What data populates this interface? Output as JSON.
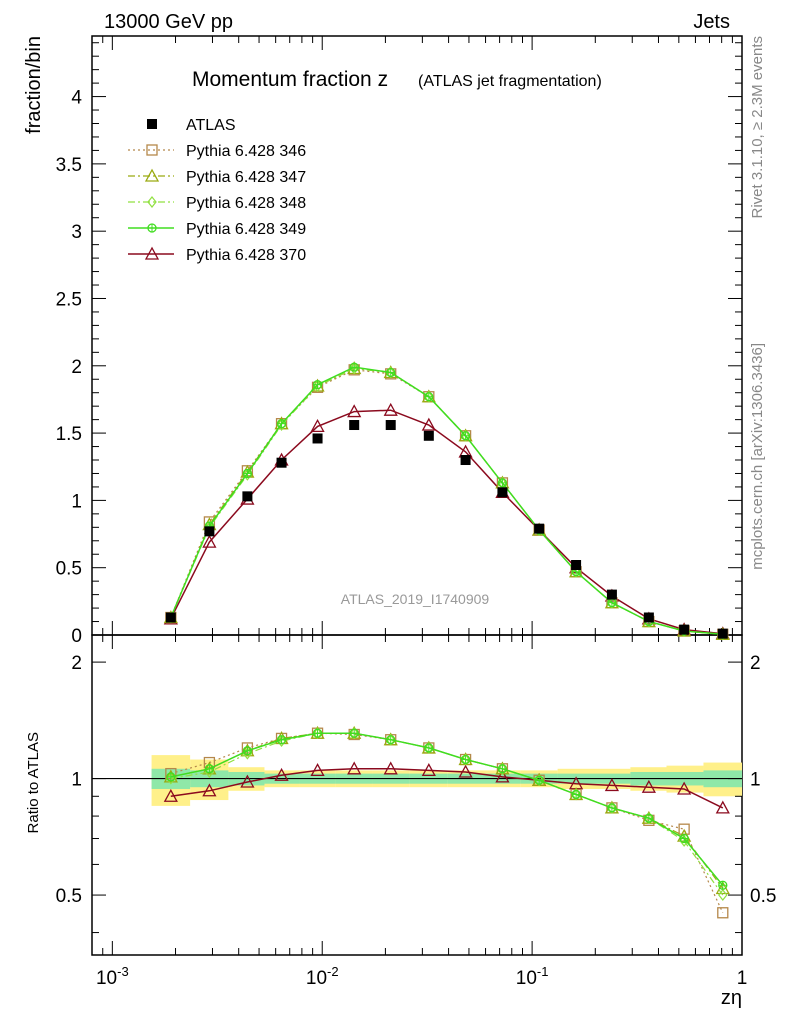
{
  "header": {
    "left": "13000 GeV pp",
    "right": "Jets"
  },
  "side": {
    "rivet": "Rivet 3.1.10, ≥ 2.3M events",
    "mcplots": "mcplots.cern.ch [arXiv:1306.3436]"
  },
  "chart_data": [
    {
      "type": "scatter",
      "title_main": "Momentum fraction z",
      "title_sub": "(ATLAS jet fragmentation)",
      "ylabel": "fraction/bin",
      "xlabel": "zη",
      "watermark": "ATLAS_2019_I1740909",
      "xscale": "log",
      "xlim": [
        0.0008,
        1.0
      ],
      "ylim": [
        0,
        4.45
      ],
      "yticks": [
        "0",
        "0.5",
        "1",
        "1.5",
        "2",
        "2.5",
        "3",
        "3.5",
        "4"
      ],
      "xticks": [
        "10^-3",
        "10^-2",
        "10^-1",
        "1"
      ],
      "legend_position": "top-left",
      "x": [
        0.0019,
        0.0029,
        0.0044,
        0.0064,
        0.0095,
        0.0142,
        0.0212,
        0.0322,
        0.0482,
        0.0722,
        0.108,
        0.162,
        0.24,
        0.36,
        0.53,
        0.81
      ],
      "series": [
        {
          "name": "ATLAS",
          "color": "#000000",
          "marker": "square-filled",
          "line": "none",
          "values": [
            0.13,
            0.77,
            1.03,
            1.28,
            1.46,
            1.56,
            1.56,
            1.48,
            1.3,
            1.06,
            0.79,
            0.52,
            0.3,
            0.13,
            0.04,
            0.01
          ]
        },
        {
          "name": "Pythia 6.428 346",
          "color": "#b5884a",
          "marker": "square-open",
          "line": "dotted",
          "values": [
            0.13,
            0.84,
            1.22,
            1.57,
            1.84,
            1.97,
            1.94,
            1.77,
            1.48,
            1.13,
            0.78,
            0.47,
            0.24,
            0.1,
            0.03,
            0.005
          ]
        },
        {
          "name": "Pythia 6.428 347",
          "color": "#9aaa10",
          "marker": "triangle-open",
          "line": "dashdot",
          "values": [
            0.13,
            0.82,
            1.21,
            1.57,
            1.85,
            1.98,
            1.95,
            1.77,
            1.48,
            1.13,
            0.78,
            0.47,
            0.24,
            0.1,
            0.03,
            0.005
          ]
        },
        {
          "name": "Pythia 6.428 348",
          "color": "#90e040",
          "marker": "diamond-open",
          "line": "dashdot",
          "values": [
            0.13,
            0.8,
            1.19,
            1.56,
            1.85,
            1.98,
            1.95,
            1.77,
            1.48,
            1.13,
            0.78,
            0.47,
            0.24,
            0.1,
            0.03,
            0.005
          ]
        },
        {
          "name": "Pythia 6.428 349",
          "color": "#40dd20",
          "marker": "circle-cross",
          "line": "solid",
          "values": [
            0.13,
            0.81,
            1.2,
            1.57,
            1.86,
            1.99,
            1.95,
            1.77,
            1.48,
            1.13,
            0.78,
            0.47,
            0.24,
            0.1,
            0.03,
            0.005
          ]
        },
        {
          "name": "Pythia 6.428 370",
          "color": "#8b0a1e",
          "marker": "triangle-open",
          "line": "solid",
          "values": [
            0.12,
            0.69,
            1.01,
            1.3,
            1.55,
            1.66,
            1.67,
            1.56,
            1.36,
            1.06,
            0.78,
            0.5,
            0.29,
            0.12,
            0.04,
            0.01
          ]
        }
      ]
    },
    {
      "type": "scatter",
      "ylabel": "Ratio to ATLAS",
      "xlabel": "zη",
      "xscale": "log",
      "xlim": [
        0.0008,
        1.0
      ],
      "ylim": [
        0.35,
        2.35
      ],
      "yticks": [
        "0.5",
        "1",
        "2"
      ],
      "reference_line": 1,
      "x": [
        0.0019,
        0.0029,
        0.0044,
        0.0064,
        0.0095,
        0.0142,
        0.0212,
        0.0322,
        0.0482,
        0.0722,
        0.108,
        0.162,
        0.24,
        0.36,
        0.53,
        0.81
      ],
      "bands": {
        "yellow": [
          0.15,
          0.12,
          0.07,
          0.05,
          0.05,
          0.05,
          0.05,
          0.05,
          0.05,
          0.05,
          0.05,
          0.06,
          0.06,
          0.07,
          0.08,
          0.1
        ],
        "green": [
          0.06,
          0.05,
          0.04,
          0.03,
          0.03,
          0.03,
          0.03,
          0.03,
          0.03,
          0.03,
          0.03,
          0.03,
          0.03,
          0.04,
          0.04,
          0.05
        ]
      },
      "series": [
        {
          "name": "Pythia 6.428 346",
          "color": "#b5884a",
          "marker": "square-open",
          "line": "dotted",
          "values": [
            1.03,
            1.1,
            1.2,
            1.27,
            1.31,
            1.3,
            1.26,
            1.2,
            1.12,
            1.06,
            0.99,
            0.91,
            0.84,
            0.78,
            0.74,
            0.45
          ]
        },
        {
          "name": "Pythia 6.428 347",
          "color": "#9aaa10",
          "marker": "triangle-open",
          "line": "dashdot",
          "values": [
            1.01,
            1.06,
            1.18,
            1.27,
            1.31,
            1.31,
            1.26,
            1.2,
            1.12,
            1.06,
            0.99,
            0.91,
            0.84,
            0.79,
            0.71,
            0.52
          ]
        },
        {
          "name": "Pythia 6.428 348",
          "color": "#90e040",
          "marker": "diamond-open",
          "line": "dashdot",
          "values": [
            1.0,
            1.04,
            1.16,
            1.25,
            1.31,
            1.31,
            1.26,
            1.2,
            1.12,
            1.06,
            0.99,
            0.91,
            0.84,
            0.79,
            0.69,
            0.5
          ]
        },
        {
          "name": "Pythia 6.428 349",
          "color": "#40dd20",
          "marker": "circle-cross",
          "line": "solid",
          "values": [
            1.01,
            1.06,
            1.18,
            1.26,
            1.31,
            1.31,
            1.26,
            1.2,
            1.12,
            1.06,
            0.99,
            0.91,
            0.84,
            0.79,
            0.7,
            0.53
          ]
        },
        {
          "name": "Pythia 6.428 370",
          "color": "#8b0a1e",
          "marker": "triangle-open",
          "line": "solid",
          "values": [
            0.9,
            0.93,
            0.98,
            1.02,
            1.05,
            1.06,
            1.06,
            1.05,
            1.04,
            1.01,
            0.99,
            0.97,
            0.96,
            0.95,
            0.94,
            0.84
          ]
        }
      ]
    }
  ]
}
